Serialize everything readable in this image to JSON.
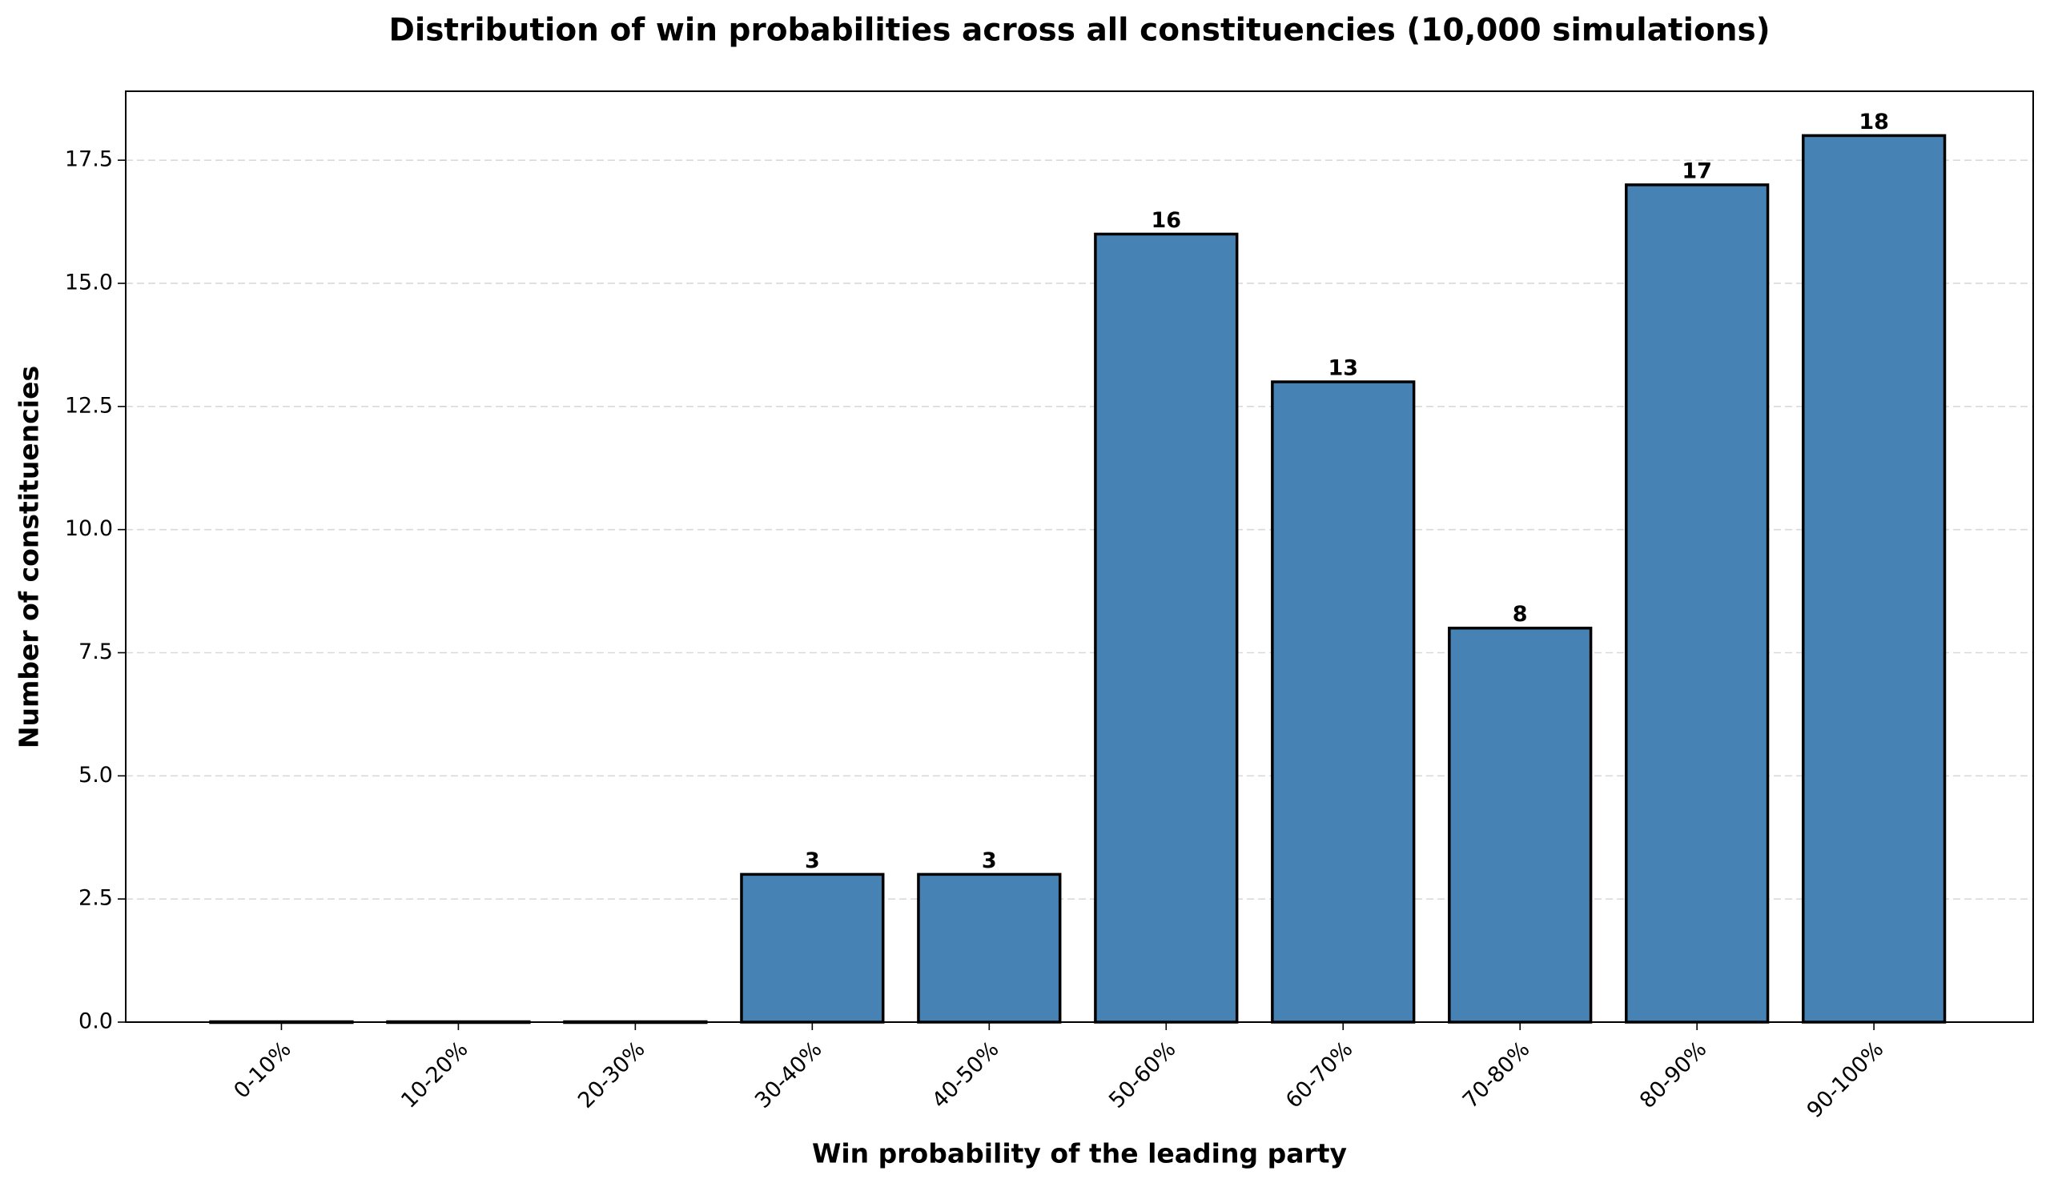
{
  "chart_data": {
    "type": "bar",
    "title": "Distribution of win probabilities across all constituencies (10,000 simulations)",
    "x_label": "Win probability of the leading party",
    "y_label": "Number of constituencies",
    "categories": [
      "0-10%",
      "10-20%",
      "20-30%",
      "30-40%",
      "40-50%",
      "50-60%",
      "60-70%",
      "70-80%",
      "80-90%",
      "90-100%"
    ],
    "values": [
      0,
      0,
      0,
      3,
      3,
      16,
      13,
      8,
      17,
      18
    ],
    "value_labels": [
      null,
      null,
      null,
      "3",
      "3",
      "16",
      "13",
      "8",
      "17",
      "18"
    ],
    "color": "#4682b4",
    "edge_color": "#000000",
    "ylim": [
      0,
      18.9
    ],
    "yticks": [
      {
        "value": 0,
        "label": "0.0"
      },
      2.5,
      {
        "value": 5,
        "label": "5.0"
      },
      7.5,
      {
        "value": 10,
        "label": "10.0"
      },
      12.5,
      {
        "value": 15,
        "label": "15.0"
      },
      17.5
    ],
    "grid": true
  }
}
